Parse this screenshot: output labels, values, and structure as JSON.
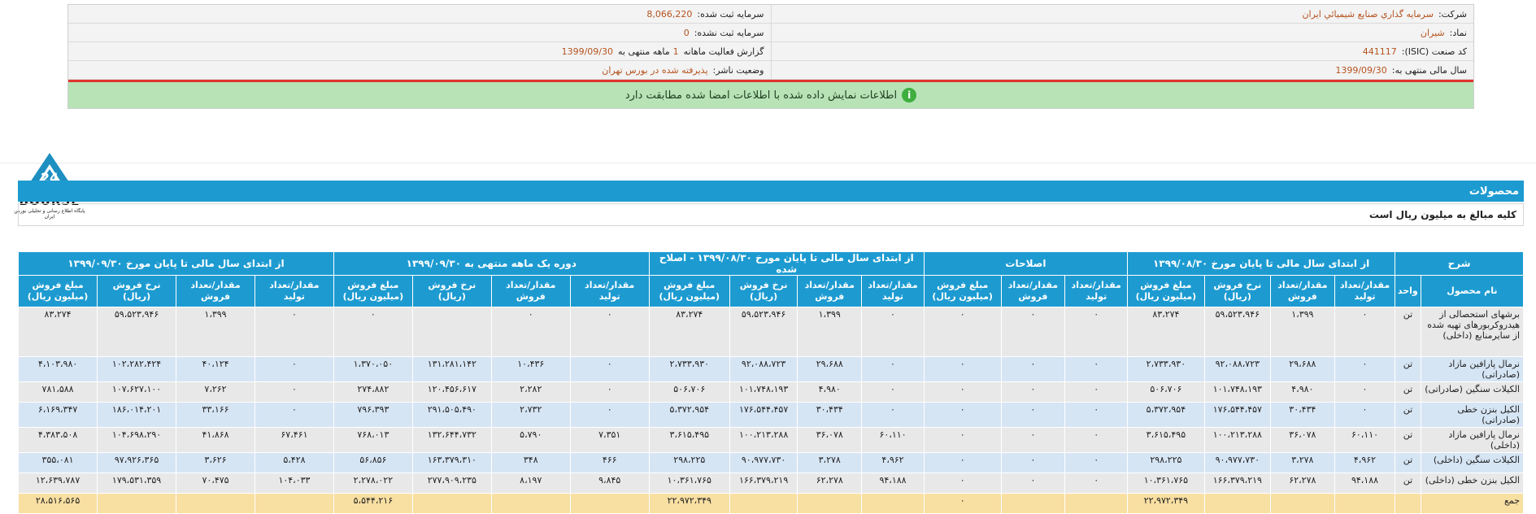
{
  "company_info": {
    "company_label": "شرکت:",
    "company_value": "سرمايه گذاري صنايع شيميائي ايران",
    "reg_capital_label": "سرمايه ثبت شده:",
    "reg_capital_value": "8,066,220",
    "symbol_label": "نماد:",
    "symbol_value": "شيران",
    "unreg_capital_label": "سرمايه ثبت نشده:",
    "unreg_capital_value": "0",
    "isic_label": "کد صنعت (ISIC):",
    "isic_value": "441117",
    "report_label": "گزارش فعاليت ماهانه",
    "report_count": "1",
    "report_mid": "ماهه منتهی به",
    "report_date": "1399/09/30",
    "fiscal_label": "سال مالی منتهی به:",
    "fiscal_value": "1399/09/30",
    "status_label": "وضعيت ناشر:",
    "status_value": "پذيرفته شده در بورس تهران",
    "notice": "اطلاعات نمایش داده شده با اطلاعات امضا شده مطابقت دارد",
    "notice_icon": "info-icon"
  },
  "logo": {
    "brand": "BOURSE",
    "tagline": "پایگاه اطلاع رسانی و تحلیلی بورس ایران",
    "mark": "24",
    "color": "#1d8fc1"
  },
  "section_title": "محصولات",
  "note": "کلیه مبالغ به میلیون ریال است",
  "table": {
    "group_headers": [
      "شرح",
      "از ابتدای سال مالی تا پایان مورخ ۱۳۹۹/۰۸/۳۰",
      "اصلاحات",
      "از ابتدای سال مالی تا پایان مورخ ۱۳۹۹/۰۸/۳۰ - اصلاح شده",
      "دوره یک ماهه منتهی به ۱۳۹۹/۰۹/۳۰",
      "از ابتدای سال مالی تا پایان مورخ ۱۳۹۹/۰۹/۳۰"
    ],
    "column_headers": [
      "نام محصول",
      "واحد",
      "مقدار/تعداد تولید",
      "مقدار/تعداد فروش",
      "نرخ فروش (ریال)",
      "مبلغ فروش (میلیون ریال)",
      "مقدار/تعداد تولید",
      "مقدار/تعداد فروش",
      "مبلغ فروش (میلیون ریال)",
      "مقدار/تعداد تولید",
      "مقدار/تعداد فروش",
      "نرخ فروش (ریال)",
      "مبلغ فروش (میلیون ریال)",
      "مقدار/تعداد تولید",
      "مقدار/تعداد فروش",
      "نرخ فروش (ریال)",
      "مبلغ فروش (میلیون ریال)",
      "مقدار/تعداد تولید",
      "مقدار/تعداد فروش",
      "نرخ فروش (ریال)",
      "مبلغ فروش (میلیون ریال)"
    ],
    "rows": [
      [
        "برشهای استحصالی از هیدروکربورهای تهیه شده از سایرمنابع (داخلی)",
        "تن",
        "۰",
        "۱،۳۹۹",
        "۵۹،۵۲۳،۹۴۶",
        "۸۳،۲۷۴",
        "۰",
        "۰",
        "۰",
        "۰",
        "۱،۳۹۹",
        "۵۹،۵۲۳،۹۴۶",
        "۸۳،۲۷۴",
        "۰",
        "۰",
        "",
        "۰",
        "۰",
        "۱،۳۹۹",
        "۵۹،۵۲۳،۹۴۶",
        "۸۳،۲۷۴"
      ],
      [
        "نرمال پارافین مازاد (صادراتی)",
        "تن",
        "۰",
        "۲۹،۶۸۸",
        "۹۲،۰۸۸،۷۲۳",
        "۲،۷۳۳،۹۳۰",
        "۰",
        "۰",
        "۰",
        "۰",
        "۲۹،۶۸۸",
        "۹۲،۰۸۸،۷۲۳",
        "۲،۷۳۳،۹۳۰",
        "۰",
        "۱۰،۴۳۶",
        "۱۳۱،۲۸۱،۱۴۲",
        "۱،۳۷۰،۰۵۰",
        "۰",
        "۴۰،۱۲۴",
        "۱۰۲،۲۸۲،۴۲۴",
        "۴،۱۰۳،۹۸۰"
      ],
      [
        "الکیلات سنگین (صادراتی)",
        "تن",
        "۰",
        "۴،۹۸۰",
        "۱۰۱،۷۴۸،۱۹۳",
        "۵۰۶،۷۰۶",
        "۰",
        "۰",
        "۰",
        "۰",
        "۴،۹۸۰",
        "۱۰۱،۷۴۸،۱۹۳",
        "۵۰۶،۷۰۶",
        "۰",
        "۲،۲۸۲",
        "۱۲۰،۴۵۶،۶۱۷",
        "۲۷۴،۸۸۲",
        "۰",
        "۷،۲۶۲",
        "۱۰۷،۶۲۷،۱۰۰",
        "۷۸۱،۵۸۸"
      ],
      [
        "الکیل بنزن خطی (صادراتی)",
        "تن",
        "۰",
        "۳۰،۴۳۴",
        "۱۷۶،۵۴۴،۴۵۷",
        "۵،۳۷۲،۹۵۴",
        "۰",
        "۰",
        "۰",
        "۰",
        "۳۰،۴۳۴",
        "۱۷۶،۵۴۴،۴۵۷",
        "۵،۳۷۲،۹۵۴",
        "۰",
        "۲،۷۳۲",
        "۲۹۱،۵۰۵،۴۹۰",
        "۷۹۶،۳۹۳",
        "۰",
        "۳۳،۱۶۶",
        "۱۸۶،۰۱۴،۲۰۱",
        "۶،۱۶۹،۳۴۷"
      ],
      [
        "نرمال پارافین مازاد (داخلی)",
        "تن",
        "۶۰،۱۱۰",
        "۳۶،۰۷۸",
        "۱۰۰،۲۱۳،۲۸۸",
        "۳،۶۱۵،۴۹۵",
        "۰",
        "۰",
        "۰",
        "۶۰،۱۱۰",
        "۳۶،۰۷۸",
        "۱۰۰،۲۱۳،۲۸۸",
        "۳،۶۱۵،۴۹۵",
        "۷،۳۵۱",
        "۵،۷۹۰",
        "۱۳۲،۶۴۴،۷۳۲",
        "۷۶۸،۰۱۳",
        "۶۷،۴۶۱",
        "۴۱،۸۶۸",
        "۱۰۴،۶۹۸،۲۹۰",
        "۴،۳۸۳،۵۰۸"
      ],
      [
        "الکیلات سنگین (داخلی)",
        "تن",
        "۴،۹۶۲",
        "۳،۲۷۸",
        "۹۰،۹۷۷،۷۳۰",
        "۲۹۸،۲۲۵",
        "۰",
        "۰",
        "۰",
        "۴،۹۶۲",
        "۳،۲۷۸",
        "۹۰،۹۷۷،۷۳۰",
        "۲۹۸،۲۲۵",
        "۴۶۶",
        "۳۴۸",
        "۱۶۳،۳۷۹،۳۱۰",
        "۵۶،۸۵۶",
        "۵،۴۲۸",
        "۳،۶۲۶",
        "۹۷،۹۲۶،۳۶۵",
        "۳۵۵،۰۸۱"
      ],
      [
        "الکیل بنزن خطی (داخلی)",
        "تن",
        "۹۴،۱۸۸",
        "۶۲،۲۷۸",
        "۱۶۶،۳۷۹،۲۱۹",
        "۱۰،۳۶۱،۷۶۵",
        "۰",
        "۰",
        "۰",
        "۹۴،۱۸۸",
        "۶۲،۲۷۸",
        "۱۶۶،۳۷۹،۲۱۹",
        "۱۰،۳۶۱،۷۶۵",
        "۹،۸۴۵",
        "۸،۱۹۷",
        "۲۷۷،۹۰۹،۲۳۵",
        "۲،۲۷۸،۰۲۲",
        "۱۰۴،۰۳۳",
        "۷۰،۴۷۵",
        "۱۷۹،۵۳۱،۳۵۹",
        "۱۲،۶۳۹،۷۸۷"
      ]
    ],
    "total": [
      "جمع",
      "",
      "",
      "",
      "",
      "۲۲،۹۷۲،۳۴۹",
      "",
      "",
      "۰",
      "",
      "",
      "",
      "۲۲،۹۷۲،۳۴۹",
      "",
      "",
      "",
      "۵،۵۴۴،۲۱۶",
      "",
      "",
      "",
      "۲۸،۵۱۶،۵۶۵"
    ]
  }
}
